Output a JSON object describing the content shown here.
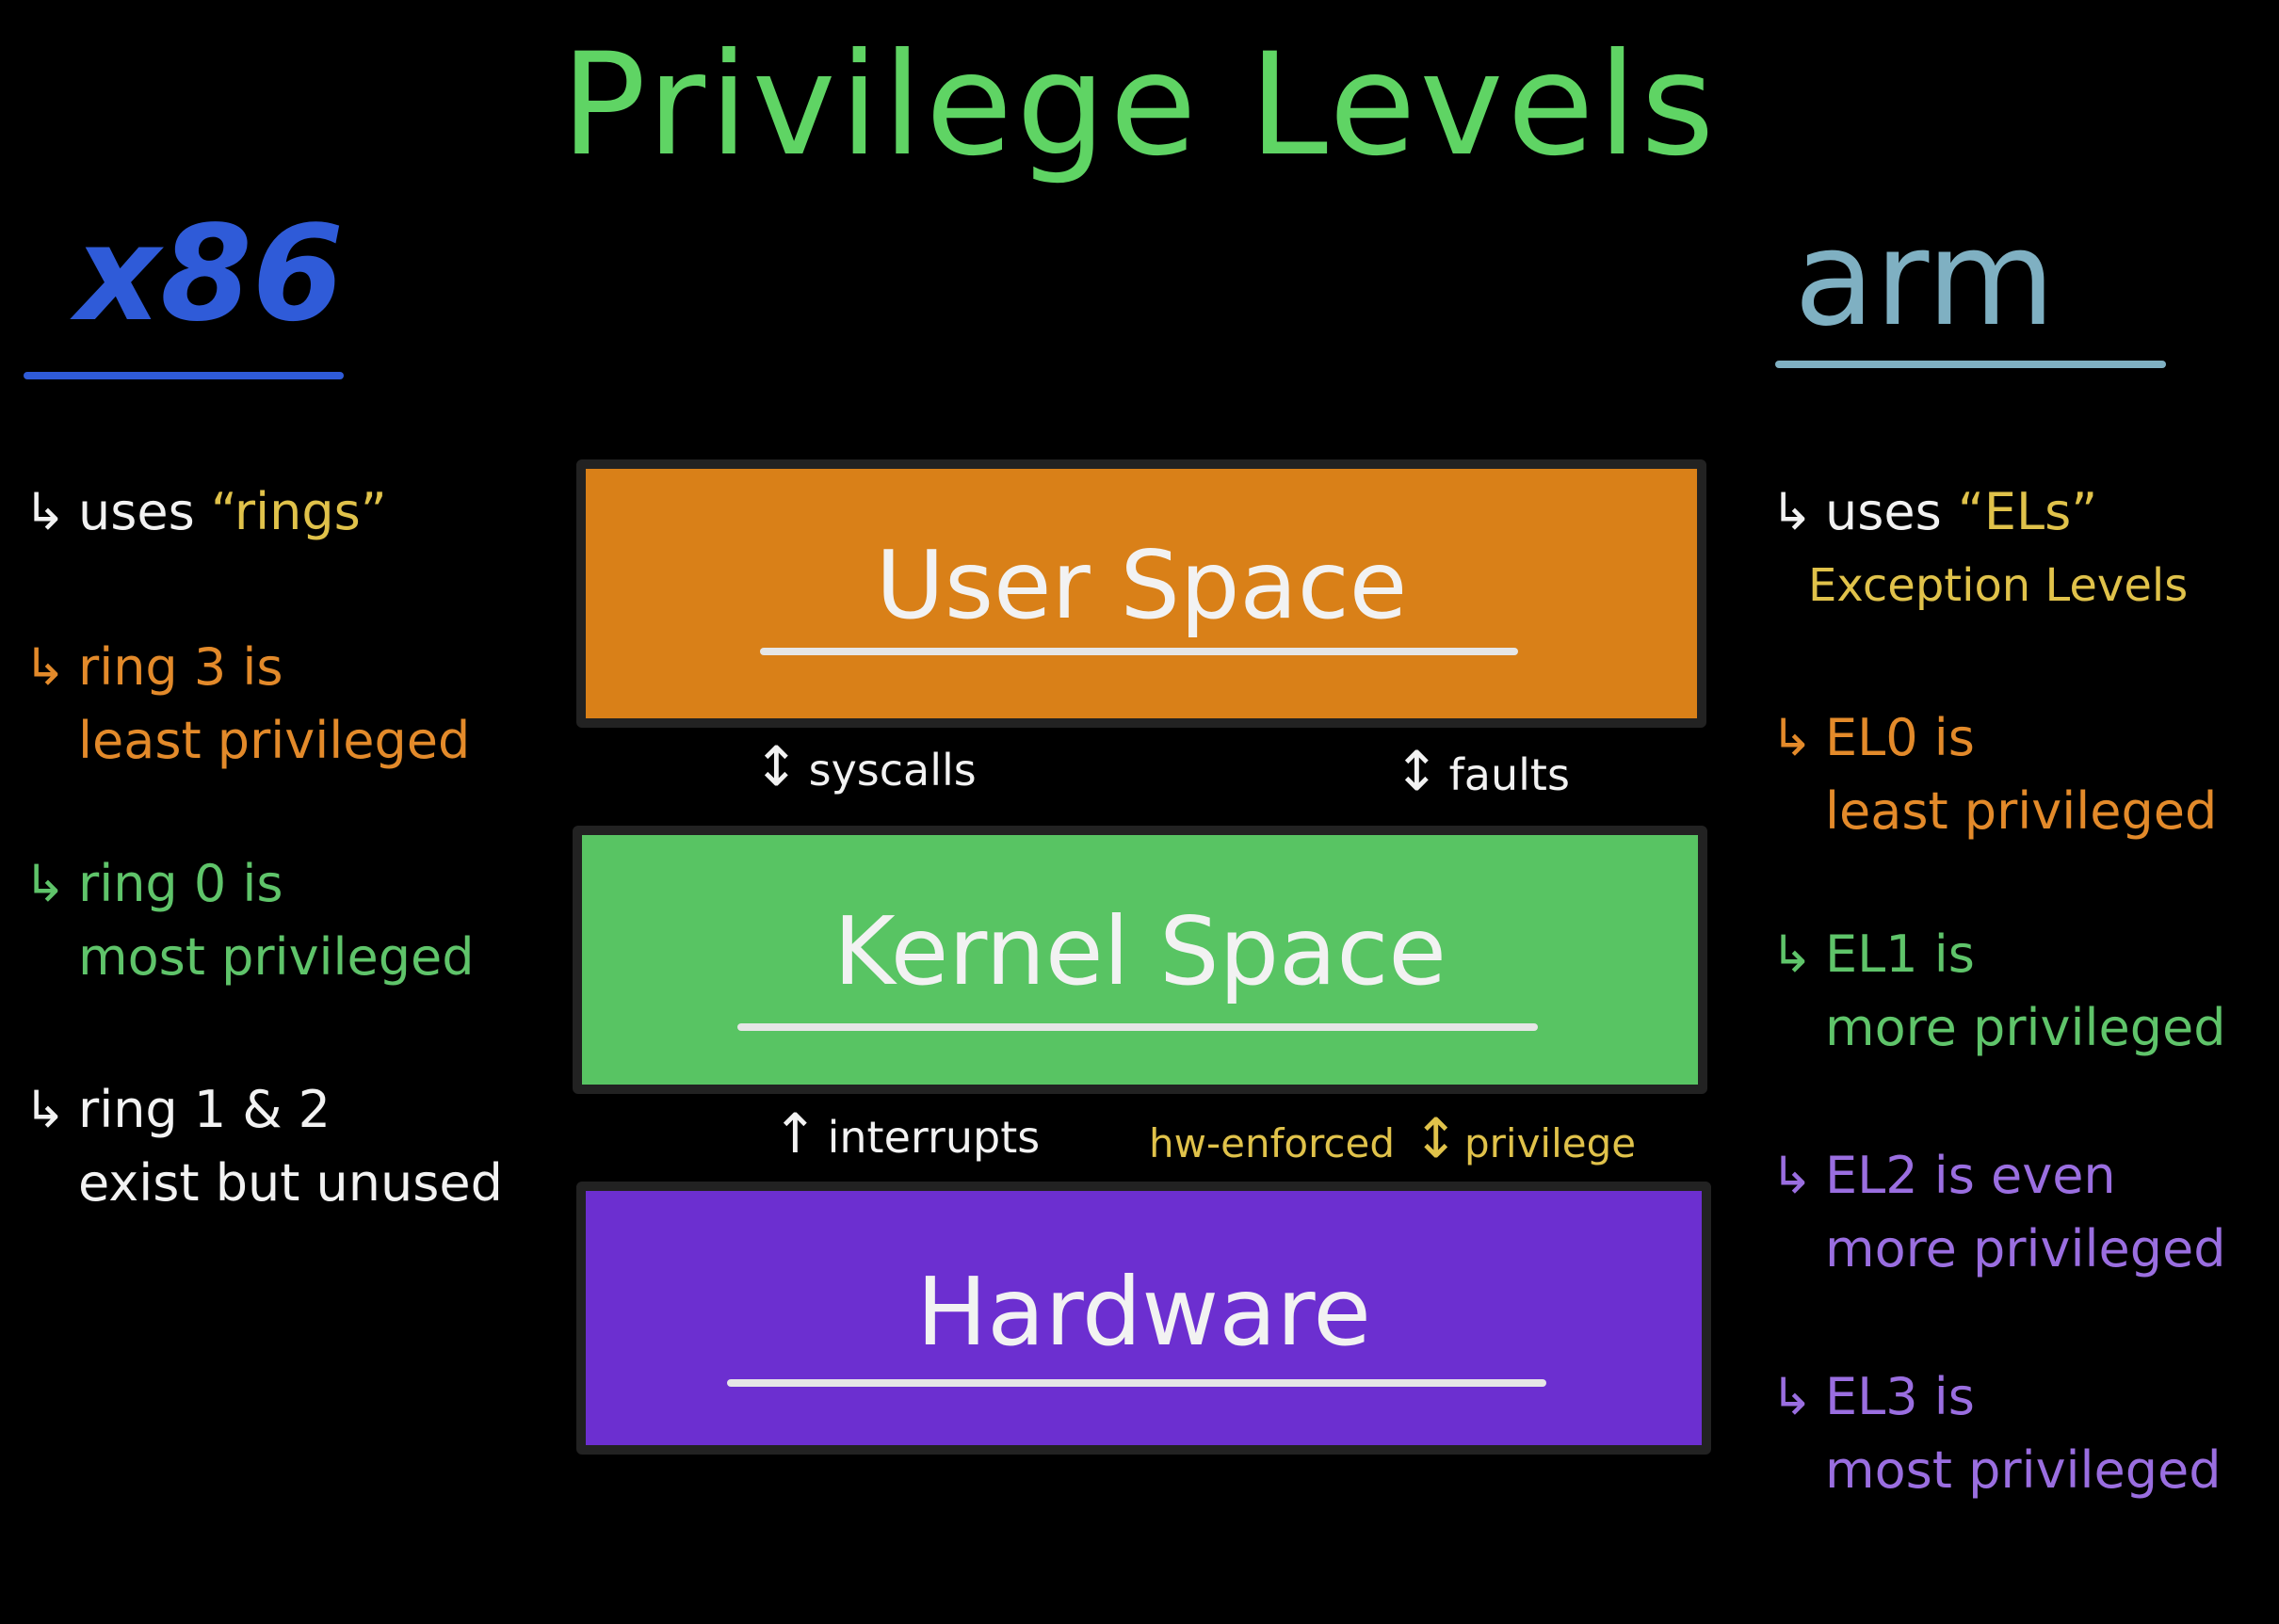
{
  "title": "Privilege Levels",
  "left": {
    "heading": "x86",
    "notes": [
      {
        "arrow": "↳",
        "line1_a": "uses ",
        "line1_b": "“rings”",
        "line2": "",
        "color": "#f2f2f2"
      },
      {
        "arrow": "↳",
        "line1": "ring 3 is",
        "line2": "least privileged",
        "color": "#e38a2a"
      },
      {
        "arrow": "↳",
        "line1": "ring 0 is",
        "line2": "most privileged",
        "color": "#5fc46a"
      },
      {
        "arrow": "↳",
        "line1": "ring 1 & 2",
        "line2": "exist but unused",
        "color": "#f2f2f2"
      }
    ]
  },
  "right": {
    "heading": "arm",
    "notes": [
      {
        "arrow": "↳",
        "line1_a": "uses ",
        "line1_b": "“ELs”",
        "line2": "Exception Levels",
        "color": "#f2f2f2"
      },
      {
        "arrow": "↳",
        "line1": "EL0 is",
        "line2": "least privileged",
        "color": "#e38a2a"
      },
      {
        "arrow": "↳",
        "line1": "EL1 is",
        "line2": "more privileged",
        "color": "#5fc46a"
      },
      {
        "arrow": "↳",
        "line1": "EL2 is even",
        "line2": "more privileged",
        "color": "#9a6ee0"
      },
      {
        "arrow": "↳",
        "line1": "EL3 is",
        "line2": "most privileged",
        "color": "#9a6ee0"
      }
    ]
  },
  "layers": [
    {
      "label": "User Space",
      "color": "#d98018"
    },
    {
      "label": "Kernel Space",
      "color": "#58c463"
    },
    {
      "label": "Hardware",
      "color": "#6c2fd0"
    }
  ],
  "flows": {
    "syscalls": {
      "symbol": "↕",
      "label": "syscalls"
    },
    "faults": {
      "symbol": "↕",
      "label": "faults"
    },
    "interrupts": {
      "symbol": "↑",
      "label": "interrupts"
    },
    "hw_enforced": {
      "label_a": "hw-enforced",
      "symbol": "↕",
      "label_b": "privilege"
    }
  },
  "colors": {
    "background": "#000000",
    "title": "#5fd464",
    "x86": "#2f5bd8",
    "arm": "#7fb0c2",
    "highlight": "#e0c24a"
  }
}
